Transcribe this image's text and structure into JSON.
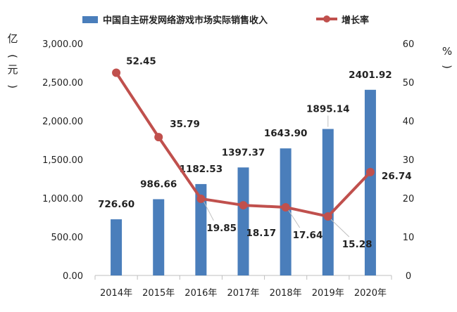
{
  "chart_data": {
    "type": "bar",
    "categories": [
      "2014年",
      "2015年",
      "2016年",
      "2017年",
      "2018年",
      "2019年",
      "2020年"
    ],
    "series": [
      {
        "name": "中国自主研发网络游戏市场实际销售收入",
        "type": "bar",
        "axis": "left",
        "color": "#4a7ebb",
        "values": [
          726.6,
          986.66,
          1182.53,
          1397.37,
          1643.9,
          1895.14,
          2401.92
        ],
        "labels": [
          "726.60",
          "986.66",
          "1182.53",
          "1397.37",
          "1643.90",
          "1895.14",
          "2401.92"
        ]
      },
      {
        "name": "增长率",
        "type": "line",
        "axis": "right",
        "color": "#c0504d",
        "values": [
          52.45,
          35.79,
          19.85,
          18.17,
          17.64,
          15.28,
          26.74
        ],
        "labels": [
          "52.45",
          "35.79",
          "19.85",
          "18.17",
          "17.64",
          "15.28",
          "26.74"
        ]
      }
    ],
    "left_axis": {
      "label": "亿元",
      "ylim": [
        0,
        3000
      ],
      "ticks": [
        "0.00",
        "500.00",
        "1,000.00",
        "1,500.00",
        "2,000.00",
        "2,500.00",
        "3,000.00"
      ]
    },
    "right_axis": {
      "label": "%",
      "ylim": [
        0,
        60
      ],
      "ticks": [
        "0",
        "10",
        "20",
        "30",
        "40",
        "50",
        "60"
      ]
    },
    "legend_position": "top",
    "grid": false
  }
}
